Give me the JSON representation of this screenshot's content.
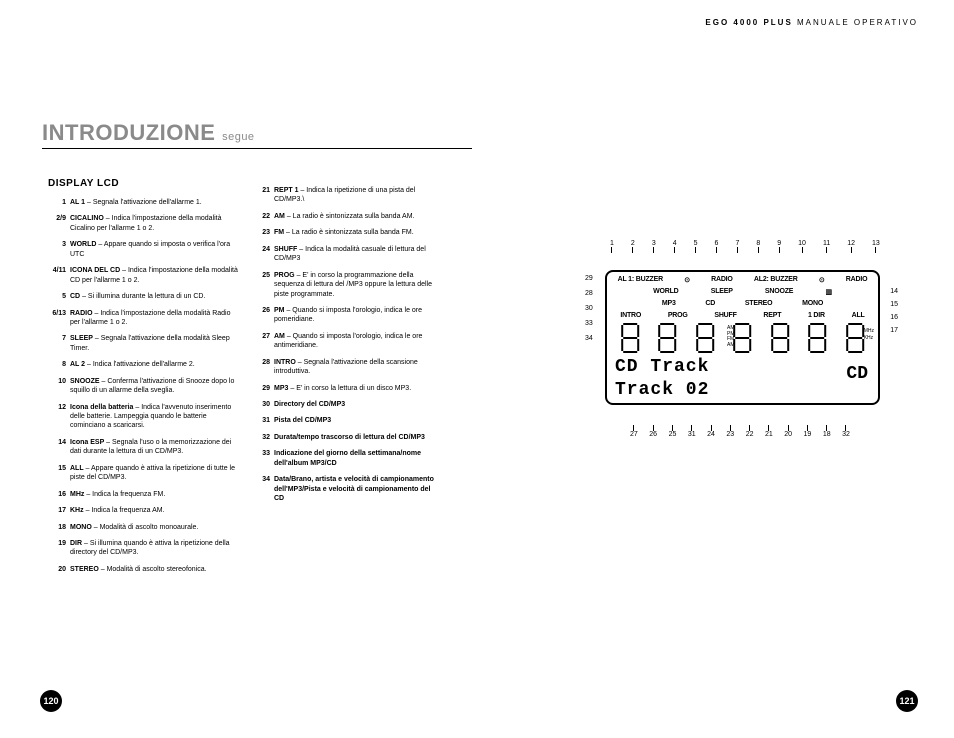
{
  "header": {
    "product": "EGO 4000 PLUS",
    "doc": "MANUALE OPERATIVO"
  },
  "title": {
    "main": "INTRODUZIONE",
    "sub": "segue"
  },
  "section_heading": "DISPLAY LCD",
  "page_left": "120",
  "page_right": "121",
  "left_items": [
    {
      "n": "1",
      "b": "AL 1",
      "t": " – Segnala l'attivazione dell'allarme 1."
    },
    {
      "n": "2/9",
      "b": "CICALINO",
      "t": " – Indica l'impostazione della modalità Cicalino per l'allarme 1 o 2."
    },
    {
      "n": "3",
      "b": "WORLD",
      "t": " – Appare quando si imposta o verifica l'ora UTC"
    },
    {
      "n": "4/11",
      "b": "ICONA DEL CD",
      "t": " – Indica l'impostazione della modalità CD per l'allarme 1 o 2."
    },
    {
      "n": "5",
      "b": "CD",
      "t": " – Si illumina durante la lettura di un CD."
    },
    {
      "n": "6/13",
      "b": "RADIO",
      "t": " – Indica l'impostazione della modalità Radio per l'allarme 1 o 2."
    },
    {
      "n": "7",
      "b": "SLEEP",
      "t": " – Segnala l'attivazione della modalità Sleep Timer."
    },
    {
      "n": "8",
      "b": "AL 2",
      "t": " – Indica l'attivazione dell'allarme 2."
    },
    {
      "n": "10",
      "b": "SNOOZE",
      "t": " – Conferma l'attivazione di Snooze dopo lo squillo di un allarme della sveglia."
    },
    {
      "n": "12",
      "b": "Icona della batteria",
      "t": " – Indica l'avvenuto inserimento delle batterie. Lampeggia quando le batterie cominciano a scaricarsi."
    },
    {
      "n": "14",
      "b": "Icona ESP",
      "t": " – Segnala l'uso o la memorizzazione dei dati durante la lettura di un CD/MP3."
    },
    {
      "n": "15",
      "b": "ALL",
      "t": " – Appare quando è attiva la ripetizione di tutte le piste del CD/MP3."
    },
    {
      "n": "16",
      "b": "MHz",
      "t": " – Indica la frequenza FM."
    },
    {
      "n": "17",
      "b": "KHz",
      "t": " – Indica la frequenza AM."
    },
    {
      "n": "18",
      "b": "MONO",
      "t": " – Modalità di ascolto monoaurale."
    },
    {
      "n": "19",
      "b": "DIR",
      "t": " – Si illumina quando è attiva la ripetizione della directory del CD/MP3."
    },
    {
      "n": "20",
      "b": "STEREO",
      "t": " – Modalità di ascolto stereofonica."
    }
  ],
  "right_items": [
    {
      "n": "21",
      "b": "REPT 1",
      "t": " – Indica la ripetizione di una pista del CD/MP3.\\"
    },
    {
      "n": "22",
      "b": "AM",
      "t": " – La radio è sintonizzata sulla banda AM."
    },
    {
      "n": "23",
      "b": "FM",
      "t": " – La radio è sintonizzata sulla banda FM."
    },
    {
      "n": "24",
      "b": "SHUFF",
      "t": " – Indica la modalità casuale di lettura del CD/MP3"
    },
    {
      "n": "25",
      "b": "PROG",
      "t": " – E' in corso la programmazione della sequenza di lettura del /MP3 oppure la lettura delle piste programmate."
    },
    {
      "n": "26",
      "b": "PM",
      "t": " – Quando si imposta l'orologio, indica le ore pomeridiane."
    },
    {
      "n": "27",
      "b": "AM",
      "t": " – Quando si imposta l'orologio, indica le ore antimeridiane."
    },
    {
      "n": "28",
      "b": "INTRO",
      "t": " – Segnala l'attivazione della scansione introduttiva."
    },
    {
      "n": "29",
      "b": "MP3",
      "t": " – E' in corso la lettura di un disco MP3."
    },
    {
      "n": "30",
      "b": "Directory del CD/MP3",
      "t": ""
    },
    {
      "n": "31",
      "b": "Pista del CD/MP3",
      "t": ""
    },
    {
      "n": "32",
      "b": "Durata/tempo trascorso di lettura del CD/MP3",
      "t": ""
    },
    {
      "n": "33",
      "b": "Indicazione del giorno della settimana/nome dell'album MP3/CD",
      "t": ""
    },
    {
      "n": "34",
      "b": "Data/Brano, artista e velocità di campionamento dell'MP3/Pista e velocità di campionamento del CD",
      "t": ""
    }
  ],
  "diagram": {
    "top_callouts": [
      "1",
      "2",
      "3",
      "4",
      "5",
      "6",
      "7",
      "8",
      "9",
      "10",
      "11",
      "12",
      "13"
    ],
    "left_callouts": [
      "29",
      "28",
      "30",
      "33",
      "34"
    ],
    "right_callouts": [
      "14",
      "15",
      "16",
      "17"
    ],
    "bottom_callouts": [
      "27",
      "26",
      "25",
      "31",
      "24",
      "23",
      "22",
      "21",
      "20",
      "19",
      "18",
      "32"
    ],
    "row1": [
      "AL 1: BUZZER",
      "⊙",
      "RADIO",
      "AL2: BUZZER",
      "⊙",
      "RADIO"
    ],
    "row2": [
      "WORLD",
      "SLEEP",
      "SNOOZE",
      "▥"
    ],
    "row3": [
      "MP3",
      "CD",
      "STEREO",
      "MONO"
    ],
    "row4": [
      "INTRO",
      "PROG",
      "SHUFF",
      "REPT",
      "1 DIR",
      "ALL"
    ],
    "side_labels": [
      "MHz",
      "KHz"
    ],
    "small_stack": [
      "AM",
      "PM",
      "FM",
      "AM"
    ],
    "text1": "CD  Track",
    "text2": "Track   02",
    "text_right": "CD"
  }
}
